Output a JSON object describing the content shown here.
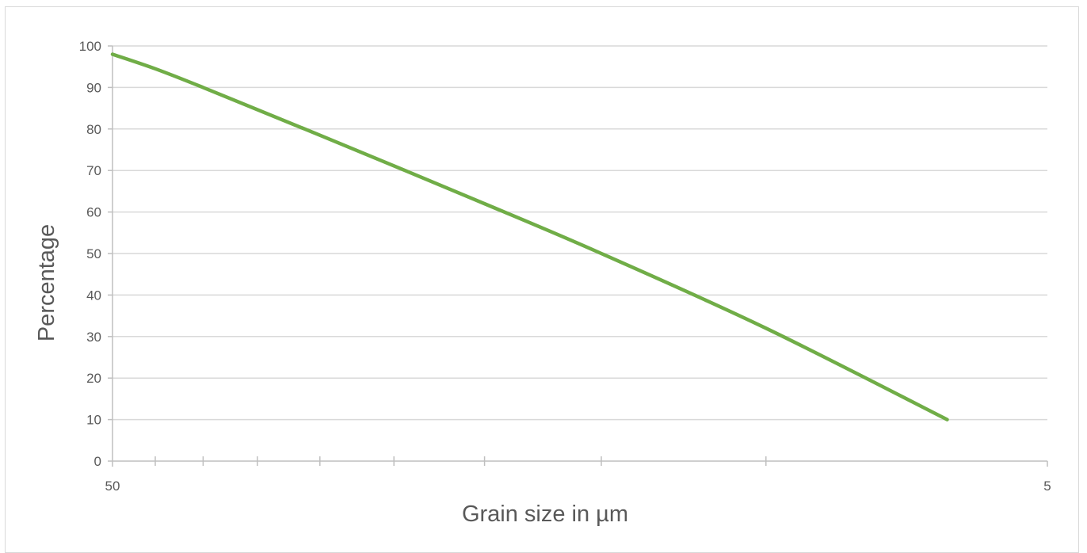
{
  "chart_data": {
    "type": "line",
    "title": "",
    "xlabel": "Grain size in µm",
    "ylabel": "Percentage",
    "x_scale": "log",
    "x_reversed": true,
    "xlim": [
      50,
      5
    ],
    "ylim": [
      0,
      100
    ],
    "y_ticks": [
      0,
      10,
      20,
      30,
      40,
      50,
      60,
      70,
      80,
      90,
      100
    ],
    "x_tick_labels": [
      "50",
      "5"
    ],
    "x_minor_ticks": [
      45,
      40,
      35,
      30,
      25,
      20,
      15,
      10
    ],
    "grid": "horizontal",
    "legend": "none",
    "series": [
      {
        "color": "#70ad47",
        "x": [
          50,
          45,
          40,
          30,
          20,
          15,
          10,
          6.4
        ],
        "y": [
          98,
          94.5,
          90,
          78.5,
          62,
          50,
          32,
          10
        ]
      }
    ]
  }
}
